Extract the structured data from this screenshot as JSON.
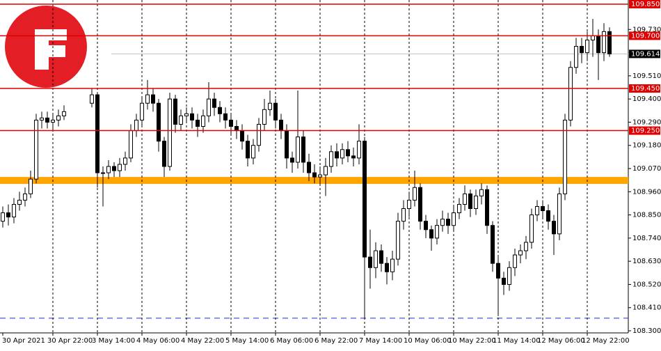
{
  "chart_data": {
    "type": "candlestick",
    "categories": [
      "30 Apr 2021",
      null,
      null,
      null,
      null,
      null,
      null,
      null,
      null,
      "30 Apr 22:00",
      null,
      null,
      null,
      null,
      null,
      null,
      null,
      "3 May 14:00",
      null,
      null,
      null,
      null,
      null,
      null,
      null,
      "4 May 06:00",
      null,
      null,
      null,
      null,
      null,
      null,
      null,
      "4 May 22:00",
      null,
      null,
      null,
      null,
      null,
      null,
      null,
      "5 May 14:00",
      null,
      null,
      null,
      null,
      null,
      null,
      null,
      "6 May 06:00",
      null,
      null,
      null,
      null,
      null,
      null,
      null,
      "6 May 22:00",
      null,
      null,
      null,
      null,
      null,
      null,
      null,
      "7 May 14:00",
      null,
      null,
      null,
      null,
      null,
      null,
      null,
      "10 May 06:00",
      null,
      null,
      null,
      null,
      null,
      null,
      null,
      "10 May 22:00",
      null,
      null,
      null,
      null,
      null,
      null,
      null,
      "11 May 14:00",
      null,
      null,
      null,
      null,
      null,
      null,
      null,
      "12 May 06:00",
      null,
      null,
      null,
      null,
      null,
      null,
      null,
      "12 May 22:00",
      null,
      null,
      null,
      null
    ],
    "open": [
      108.82,
      108.86,
      108.84,
      108.9,
      108.92,
      108.95,
      109.02,
      109.3,
      109.31,
      109.29,
      109.3,
      109.32,
      null,
      null,
      null,
      null,
      109.38,
      109.42,
      109.05,
      109.05,
      109.08,
      109.06,
      109.09,
      109.12,
      109.25,
      109.3,
      109.38,
      109.42,
      109.38,
      109.2,
      109.08,
      109.4,
      109.28,
      109.32,
      109.33,
      109.3,
      109.27,
      109.32,
      109.4,
      109.36,
      109.33,
      109.3,
      109.27,
      109.25,
      109.2,
      109.12,
      109.18,
      109.28,
      109.35,
      109.38,
      109.3,
      109.25,
      109.12,
      109.1,
      109.22,
      109.1,
      109.05,
      109.03,
      109.04,
      109.08,
      109.15,
      109.12,
      109.16,
      109.13,
      109.12,
      109.2,
      108.65,
      108.6,
      108.68,
      108.62,
      108.58,
      108.64,
      108.82,
      108.88,
      108.92,
      108.98,
      108.82,
      108.78,
      108.74,
      108.8,
      108.83,
      108.8,
      108.86,
      108.9,
      108.95,
      108.88,
      108.94,
      108.97,
      108.8,
      108.62,
      108.55,
      108.52,
      108.6,
      108.66,
      108.68,
      108.72,
      108.85,
      108.89,
      108.87,
      108.82,
      108.76,
      108.95,
      109.3,
      109.55,
      109.65,
      109.62,
      109.68,
      109.7,
      109.62,
      109.72
    ],
    "high": [
      108.89,
      108.9,
      108.93,
      108.96,
      108.98,
      109.06,
      109.33,
      109.34,
      109.34,
      109.33,
      109.35,
      109.37,
      null,
      null,
      null,
      null,
      109.45,
      109.43,
      109.08,
      109.11,
      109.1,
      109.12,
      109.15,
      109.28,
      109.33,
      109.41,
      109.49,
      109.45,
      109.4,
      109.22,
      109.43,
      109.42,
      109.35,
      109.36,
      109.36,
      109.33,
      109.35,
      109.48,
      109.43,
      109.39,
      109.36,
      109.33,
      109.3,
      109.28,
      109.23,
      109.21,
      109.31,
      109.4,
      109.44,
      109.4,
      109.33,
      109.28,
      109.15,
      109.44,
      109.25,
      109.14,
      109.09,
      109.08,
      109.12,
      109.18,
      109.19,
      109.19,
      109.2,
      109.17,
      109.28,
      109.22,
      108.78,
      108.72,
      108.71,
      108.65,
      108.68,
      108.86,
      108.92,
      108.96,
      109.06,
      109.0,
      108.85,
      108.8,
      108.83,
      108.87,
      108.86,
      108.89,
      108.93,
      108.99,
      108.97,
      108.97,
      109.0,
      108.99,
      108.82,
      108.65,
      108.58,
      108.63,
      108.69,
      108.71,
      108.75,
      108.88,
      108.92,
      108.92,
      108.9,
      108.85,
      108.98,
      109.33,
      109.58,
      109.69,
      109.69,
      109.72,
      109.78,
      109.73,
      109.76,
      109.74
    ],
    "low": [
      108.79,
      108.8,
      108.81,
      108.87,
      108.89,
      108.93,
      109.0,
      109.26,
      109.26,
      109.25,
      109.27,
      109.3,
      null,
      null,
      null,
      null,
      109.36,
      108.98,
      108.89,
      109.02,
      109.03,
      109.03,
      109.06,
      109.1,
      109.22,
      109.27,
      109.35,
      109.34,
      109.15,
      109.03,
      109.06,
      109.24,
      109.25,
      109.29,
      109.26,
      109.22,
      109.24,
      109.29,
      109.32,
      109.29,
      109.26,
      109.23,
      109.21,
      109.16,
      109.08,
      109.09,
      109.15,
      109.25,
      109.32,
      109.26,
      109.21,
      109.07,
      109.05,
      109.07,
      109.05,
      109.01,
      109.0,
      108.99,
      108.94,
      109.05,
      109.08,
      109.09,
      109.1,
      109.08,
      109.09,
      108.36,
      108.5,
      108.55,
      108.58,
      108.52,
      108.54,
      108.61,
      108.78,
      108.84,
      108.89,
      108.78,
      108.74,
      108.68,
      108.71,
      108.77,
      108.76,
      108.77,
      108.83,
      108.87,
      108.84,
      108.85,
      108.9,
      108.76,
      108.58,
      108.37,
      108.47,
      108.49,
      108.56,
      108.62,
      108.64,
      108.69,
      108.82,
      108.83,
      108.78,
      108.66,
      108.73,
      108.92,
      109.27,
      109.52,
      109.57,
      109.58,
      109.6,
      109.49,
      109.58,
      109.6
    ],
    "close": [
      108.86,
      108.84,
      108.9,
      108.92,
      108.95,
      109.02,
      109.3,
      109.31,
      109.29,
      109.3,
      109.32,
      109.34,
      null,
      null,
      null,
      null,
      109.42,
      109.05,
      109.05,
      109.08,
      109.06,
      109.09,
      109.12,
      109.25,
      109.3,
      109.38,
      109.42,
      109.38,
      109.2,
      109.08,
      109.4,
      109.28,
      109.32,
      109.33,
      109.3,
      109.27,
      109.32,
      109.4,
      109.36,
      109.33,
      109.3,
      109.27,
      109.25,
      109.2,
      109.12,
      109.18,
      109.28,
      109.35,
      109.38,
      109.3,
      109.25,
      109.12,
      109.1,
      109.22,
      109.1,
      109.05,
      109.03,
      109.04,
      109.08,
      109.15,
      109.12,
      109.16,
      109.13,
      109.12,
      109.2,
      108.65,
      108.6,
      108.68,
      108.62,
      108.58,
      108.64,
      108.82,
      108.88,
      108.92,
      108.98,
      108.82,
      108.78,
      108.74,
      108.8,
      108.83,
      108.8,
      108.86,
      108.9,
      108.95,
      108.88,
      108.94,
      108.97,
      108.8,
      108.62,
      108.55,
      108.52,
      108.6,
      108.66,
      108.68,
      108.72,
      108.85,
      108.89,
      108.87,
      108.82,
      108.76,
      108.95,
      109.3,
      109.55,
      109.65,
      109.62,
      109.68,
      109.7,
      109.62,
      109.72,
      109.614
    ],
    "ylim": [
      108.3,
      109.85
    ],
    "yticks": [
      {
        "value": 108.3,
        "label": "108.300"
      },
      {
        "value": 108.41,
        "label": "108.410"
      },
      {
        "value": 108.52,
        "label": "108.520"
      },
      {
        "value": 108.63,
        "label": "108.630"
      },
      {
        "value": 108.74,
        "label": "108.740"
      },
      {
        "value": 108.85,
        "label": "108.850"
      },
      {
        "value": 108.96,
        "label": "108.960"
      },
      {
        "value": 109.07,
        "label": "109.070"
      },
      {
        "value": 109.18,
        "label": "109.180"
      },
      {
        "value": 109.29,
        "label": "109.290"
      },
      {
        "value": 109.4,
        "label": "109.400"
      },
      {
        "value": 109.51,
        "label": "109.510"
      },
      {
        "value": 109.73,
        "label": "109.730"
      }
    ],
    "levels": [
      {
        "value": 109.85,
        "label": "109.850"
      },
      {
        "value": 109.7,
        "label": "109.700"
      },
      {
        "value": 109.45,
        "label": "109.450"
      },
      {
        "value": 109.25,
        "label": "109.250"
      }
    ],
    "level_color": "#e00000",
    "current_price": {
      "value": 109.614,
      "label": "109.614"
    },
    "support_band": [
      108.997,
      109.03
    ],
    "band_color": "#ffa500",
    "low_line": 108.36,
    "low_line_color": "#1a2fd6"
  }
}
